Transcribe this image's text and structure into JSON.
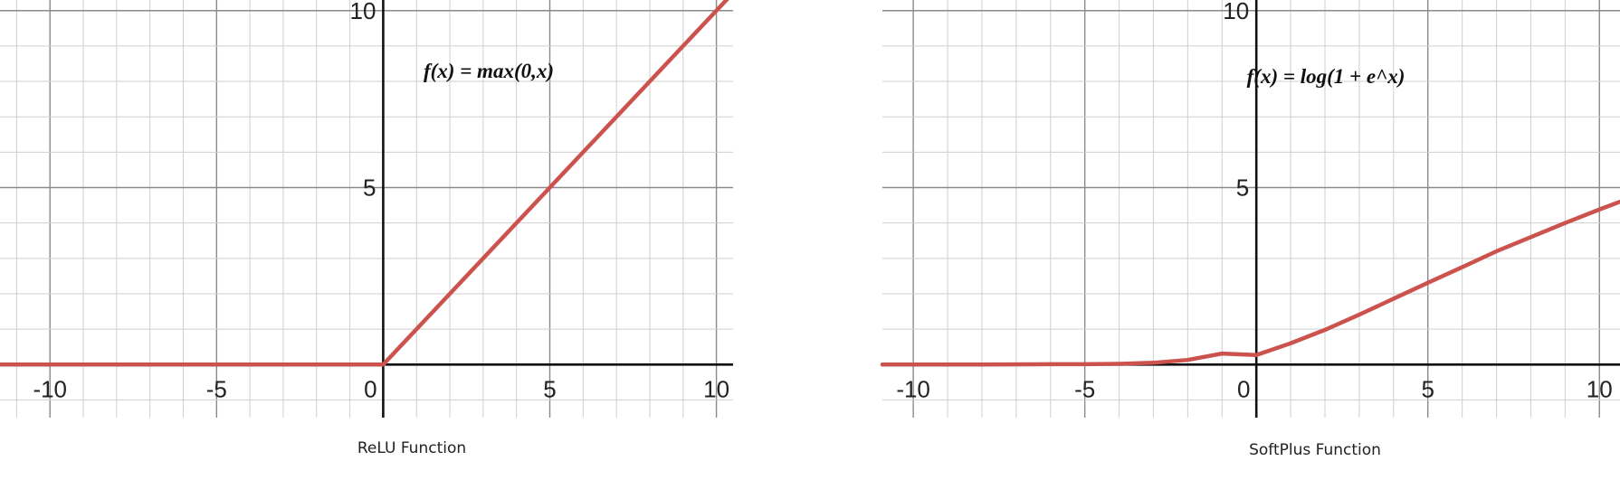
{
  "charts": [
    {
      "id": "relu",
      "caption": "ReLU Function",
      "formula": "f(x) = max(0,x)",
      "chart_data": {
        "type": "line",
        "title": "f(x) = max(0,x)",
        "xlabel": "",
        "ylabel": "",
        "xlim": [
          -11.5,
          10.5
        ],
        "ylim": [
          -1.5,
          10.3
        ],
        "x_ticks": [
          -10,
          -5,
          0,
          5,
          10
        ],
        "y_ticks": [
          5,
          10
        ],
        "x_tick_labels": [
          "-10",
          "-5",
          "0",
          "5",
          "10"
        ],
        "y_tick_labels": [
          "5",
          "10"
        ],
        "grid": true,
        "series": [
          {
            "x": [
              -11.5,
              -10,
              -5,
              0,
              5,
              10,
              10.5
            ],
            "y": [
              0,
              0,
              0,
              0,
              5,
              10,
              10.5
            ]
          }
        ]
      }
    },
    {
      "id": "softplus",
      "caption": "SoftPlus Function",
      "formula": "f(x) = log(1 + e^x)",
      "chart_data": {
        "type": "line",
        "title": "f(x) = log(1 + e^x)",
        "xlabel": "",
        "ylabel": "",
        "xlim": [
          -10.9,
          10.6
        ],
        "ylim": [
          -1.5,
          10.3
        ],
        "x_ticks": [
          -10,
          -5,
          0,
          5,
          10
        ],
        "y_ticks": [
          5,
          10
        ],
        "x_tick_labels": [
          "-10",
          "-5",
          "0",
          "5",
          "10"
        ],
        "y_tick_labels": [
          "5",
          "10"
        ],
        "grid": true,
        "series": [
          {
            "x": [
              -10.9,
              -10,
              -8,
              -6,
              -5,
              -4,
              -3,
              -2,
              -1,
              0,
              1,
              2,
              3,
              4,
              5,
              6,
              7,
              8,
              9,
              10,
              10.6
            ],
            "y": [
              0,
              0,
              0,
              0.01,
              0.01,
              0.02,
              0.05,
              0.13,
              0.31,
              0.27,
              0.6,
              0.98,
              1.41,
              1.86,
              2.31,
              2.75,
              3.2,
              3.6,
              4.0,
              4.38,
              4.6
            ]
          }
        ]
      }
    }
  ]
}
